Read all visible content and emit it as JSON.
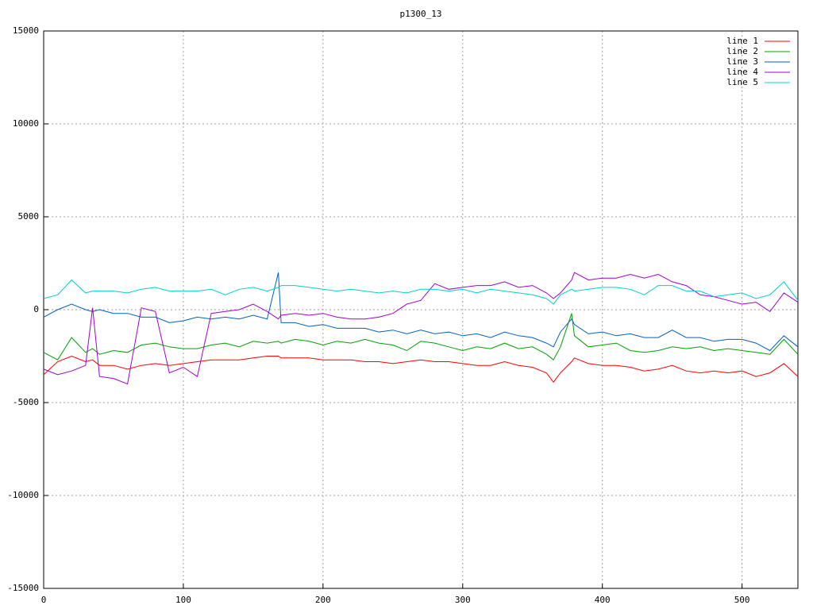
{
  "chart_data": {
    "type": "line",
    "title": "p1300_13",
    "x": [
      0,
      10,
      20,
      30,
      35,
      40,
      50,
      60,
      70,
      80,
      90,
      100,
      110,
      120,
      130,
      140,
      150,
      160,
      168,
      170,
      180,
      190,
      200,
      210,
      220,
      230,
      240,
      250,
      260,
      270,
      280,
      290,
      300,
      310,
      320,
      330,
      340,
      350,
      360,
      365,
      370,
      378,
      380,
      390,
      400,
      410,
      420,
      430,
      440,
      450,
      460,
      470,
      480,
      490,
      500,
      510,
      520,
      530,
      540
    ],
    "series": [
      {
        "name": "line 1",
        "color": "#ff0000",
        "values": [
          -3500,
          -2800,
          -2500,
          -2800,
          -2700,
          -3000,
          -3000,
          -3200,
          -3000,
          -2900,
          -3000,
          -2900,
          -2800,
          -2700,
          -2700,
          -2700,
          -2600,
          -2500,
          -2500,
          -2600,
          -2600,
          -2600,
          -2700,
          -2700,
          -2700,
          -2800,
          -2800,
          -2900,
          -2800,
          -2700,
          -2800,
          -2800,
          -2900,
          -3000,
          -3000,
          -2800,
          -3000,
          -3100,
          -3400,
          -3900,
          -3400,
          -2800,
          -2600,
          -2900,
          -3000,
          -3000,
          -3100,
          -3300,
          -3200,
          -3000,
          -3300,
          -3400,
          -3300,
          -3400,
          -3300,
          -3600,
          -3400,
          -2900,
          -3600
        ]
      },
      {
        "name": "line 2",
        "color": "#00a000",
        "values": [
          -2300,
          -2700,
          -1500,
          -2300,
          -2100,
          -2400,
          -2200,
          -2300,
          -1900,
          -1800,
          -2000,
          -2100,
          -2100,
          -1900,
          -1800,
          -2000,
          -1700,
          -1800,
          -1700,
          -1800,
          -1600,
          -1700,
          -1900,
          -1700,
          -1800,
          -1600,
          -1800,
          -1900,
          -2200,
          -1700,
          -1800,
          -2000,
          -2200,
          -2000,
          -2100,
          -1800,
          -2100,
          -2000,
          -2400,
          -2700,
          -2000,
          -200,
          -1400,
          -2000,
          -1900,
          -1800,
          -2200,
          -2300,
          -2200,
          -2000,
          -2100,
          -2000,
          -2200,
          -2100,
          -2200,
          -2300,
          -2400,
          -1600,
          -2400
        ]
      },
      {
        "name": "line 3",
        "color": "#0060c0",
        "values": [
          -400,
          0,
          300,
          0,
          -100,
          0,
          -200,
          -200,
          -400,
          -400,
          -700,
          -600,
          -400,
          -500,
          -400,
          -500,
          -300,
          -500,
          2000,
          -700,
          -700,
          -900,
          -800,
          -1000,
          -1000,
          -1000,
          -1200,
          -1100,
          -1300,
          -1100,
          -1300,
          -1200,
          -1400,
          -1300,
          -1500,
          -1200,
          -1400,
          -1500,
          -1800,
          -2000,
          -1200,
          -500,
          -800,
          -1300,
          -1200,
          -1400,
          -1300,
          -1500,
          -1500,
          -1100,
          -1500,
          -1500,
          -1700,
          -1600,
          -1600,
          -1800,
          -2200,
          -1400,
          -2000
        ]
      },
      {
        "name": "line 4",
        "color": "#a000d0",
        "values": [
          -3200,
          -3500,
          -3300,
          -3000,
          100,
          -3600,
          -3700,
          -4000,
          100,
          -100,
          -3400,
          -3100,
          -3600,
          -200,
          -100,
          0,
          300,
          -100,
          -500,
          -300,
          -200,
          -300,
          -200,
          -400,
          -500,
          -500,
          -400,
          -200,
          300,
          500,
          1400,
          1100,
          1200,
          1300,
          1300,
          1500,
          1200,
          1300,
          900,
          600,
          900,
          1600,
          2000,
          1600,
          1700,
          1700,
          1900,
          1700,
          1900,
          1500,
          1300,
          800,
          700,
          500,
          300,
          400,
          -100,
          900,
          400
        ]
      },
      {
        "name": "line 5",
        "color": "#00d0d0",
        "values": [
          600,
          800,
          1600,
          900,
          1000,
          1000,
          1000,
          900,
          1100,
          1200,
          1000,
          1000,
          1000,
          1100,
          800,
          1100,
          1200,
          1000,
          1200,
          1300,
          1300,
          1200,
          1100,
          1000,
          1100,
          1000,
          900,
          1000,
          900,
          1100,
          1100,
          1000,
          1100,
          900,
          1100,
          1000,
          900,
          800,
          600,
          300,
          800,
          1100,
          1000,
          1100,
          1200,
          1200,
          1100,
          800,
          1300,
          1300,
          1000,
          1000,
          700,
          800,
          900,
          600,
          800,
          1500,
          500
        ]
      }
    ],
    "xlim": [
      0,
      540
    ],
    "ylim": [
      -15000,
      15000
    ],
    "xticks": [
      0,
      100,
      200,
      300,
      400,
      500
    ],
    "yticks": [
      -15000,
      -10000,
      -5000,
      0,
      5000,
      10000,
      15000
    ],
    "grid": true,
    "legend": "top-right"
  }
}
